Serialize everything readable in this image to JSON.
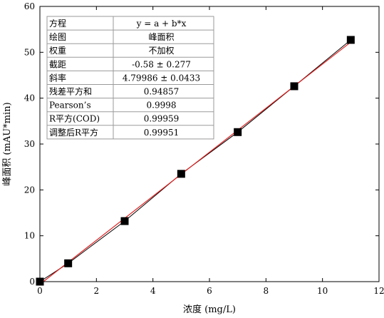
{
  "chart_data": {
    "type": "scatter",
    "xlabel": "浓度 (mg/L)",
    "ylabel": "峰面积 (mAU*min)",
    "xlim": [
      0,
      12
    ],
    "ylim": [
      0,
      60
    ],
    "x_ticks": [
      "0",
      "2",
      "4",
      "6",
      "8",
      "10",
      "12"
    ],
    "y_ticks": [
      "0",
      "10",
      "20",
      "30",
      "40",
      "50",
      "60"
    ],
    "x_tick_values": [
      0,
      2,
      4,
      6,
      8,
      10,
      12
    ],
    "y_tick_values": [
      0,
      10,
      20,
      30,
      40,
      50,
      60
    ],
    "grid": false,
    "series": [
      {
        "x": [
          0,
          1,
          3,
          5,
          7,
          9,
          11
        ],
        "y": [
          0.0,
          4.0,
          13.2,
          23.5,
          32.6,
          42.6,
          52.7
        ],
        "marker": "square",
        "color": "#000000",
        "line_color": "#000000"
      }
    ],
    "fit": {
      "intercept": -0.58,
      "slope": 4.79986,
      "color": "#e02020"
    },
    "fit_table": [
      {
        "label": "方程",
        "value": "y = a + b*x"
      },
      {
        "label": "绘图",
        "value": "峰面积"
      },
      {
        "label": "权重",
        "value": "不加权"
      },
      {
        "label": "截距",
        "value": "-0.58 ± 0.277"
      },
      {
        "label": "斜率",
        "value": "4.79986 ± 0.0433"
      },
      {
        "label": "残差平方和",
        "value": "0.94857"
      },
      {
        "label": "Pearson’s",
        "value": "0.9998"
      },
      {
        "label": "R平方(COD)",
        "value": "0.99959"
      },
      {
        "label": "调整后R平方",
        "value": "0.99951"
      }
    ]
  }
}
